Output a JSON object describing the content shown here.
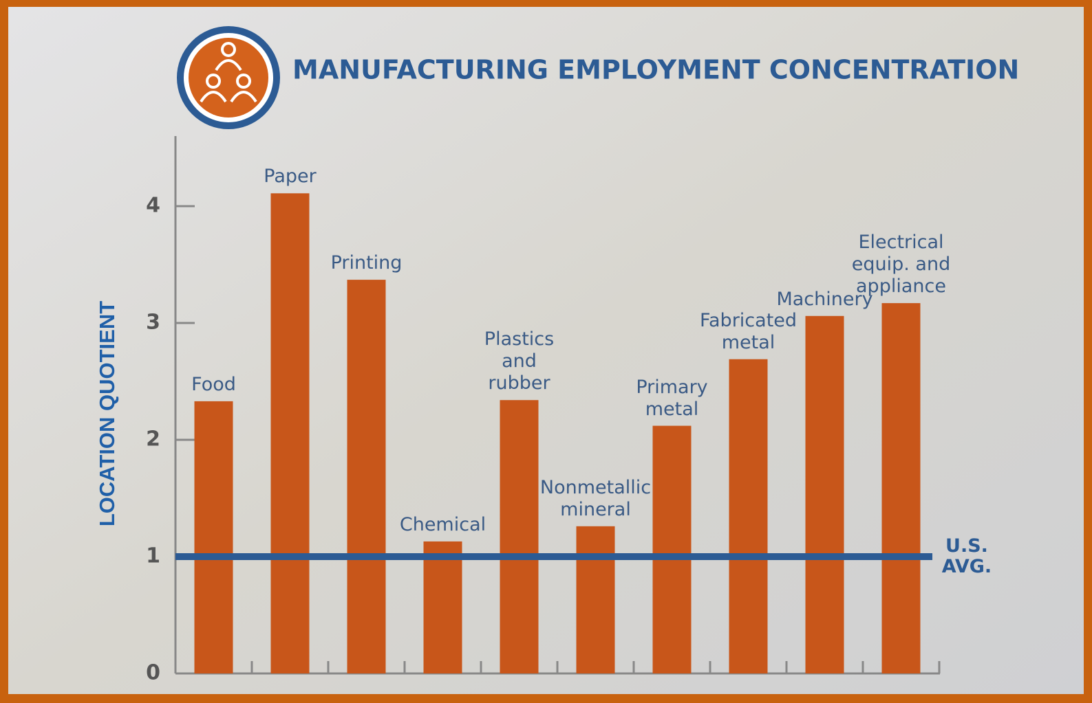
{
  "chart_data": {
    "type": "bar",
    "title": "MANUFACTURING EMPLOYMENT CONCENTRATION",
    "y_label": "LOCATION QUOTIENT",
    "categories": [
      "Food",
      "Paper",
      "Printing",
      "Chemical",
      "Plastics\nand\nrubber",
      "Nonmetallic\nmineral",
      "Primary\nmetal",
      "Fabricated\nmetal",
      "Machinery",
      "Electrical\nequip. and\nappliance"
    ],
    "values": [
      2.33,
      4.11,
      3.37,
      1.13,
      2.34,
      1.26,
      2.12,
      2.69,
      3.06,
      3.17
    ],
    "color": "#c8561a",
    "ylim": [
      0,
      4.6
    ],
    "yticks": [
      0,
      1,
      2,
      3,
      4
    ],
    "reference_line": {
      "value": 1,
      "label": "U.S.\nAVG.",
      "color": "#2c5b94"
    }
  }
}
